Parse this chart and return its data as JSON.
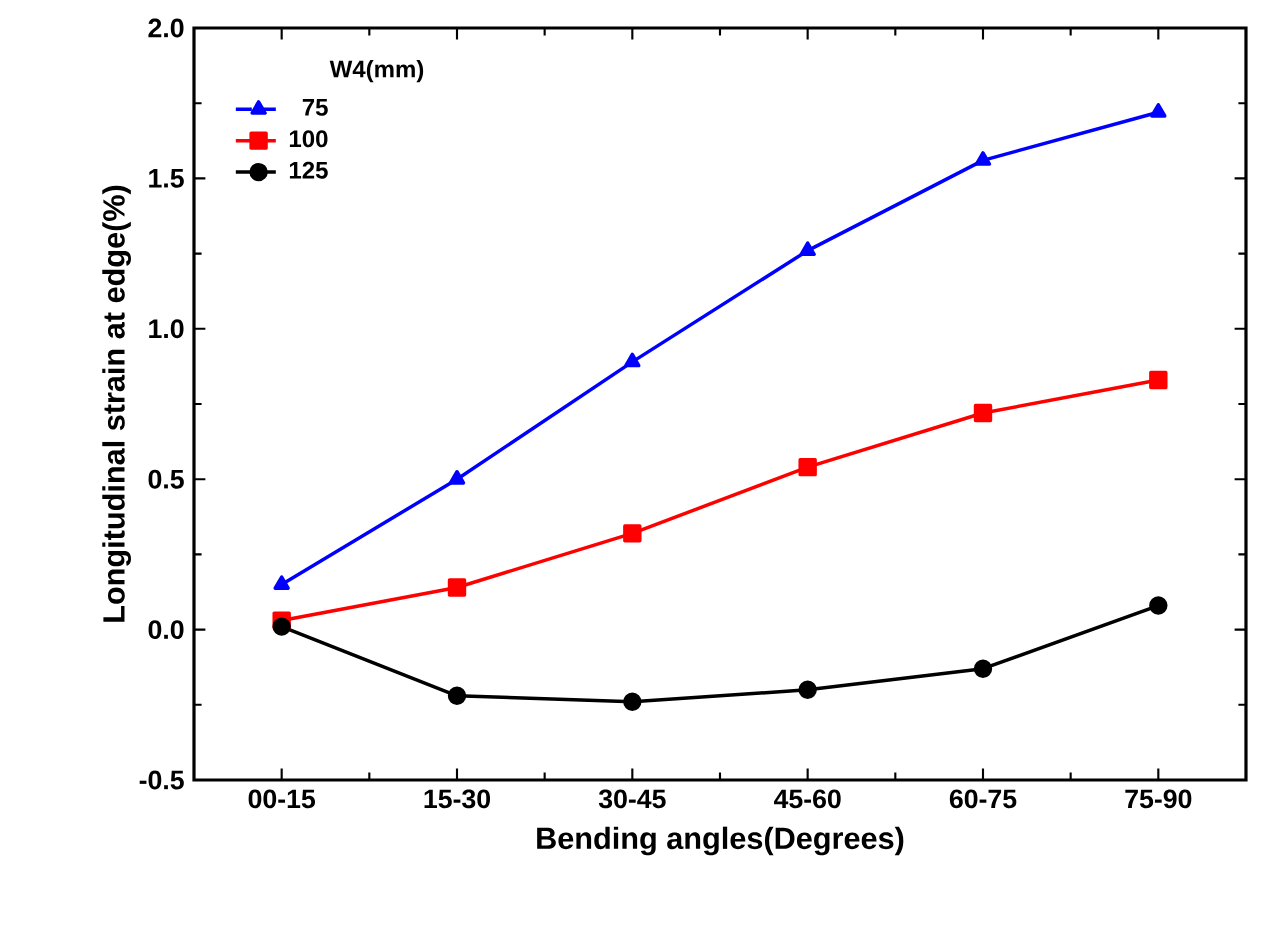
{
  "chart_data": {
    "type": "line",
    "xlabel": "Bending angles(Degrees)",
    "ylabel": "Longitudinal strain at edge(%)",
    "legend_title": "W4(mm)",
    "legend": "top left",
    "grid": false,
    "line_style": "solid",
    "categories": [
      "00-15",
      "15-30",
      "30-45",
      "45-60",
      "60-75",
      "75-90"
    ],
    "ylim": [
      -0.5,
      2.0
    ],
    "yticks": [
      {
        "value": -0.5,
        "label": "-0.5"
      },
      {
        "value": 0,
        "label": "0.0"
      },
      {
        "value": 0.5,
        "label": "0.5"
      },
      {
        "value": 1,
        "label": "1.0"
      },
      {
        "value": 1.5,
        "label": "1.5"
      },
      {
        "value": 2,
        "label": "2.0"
      }
    ],
    "series": [
      {
        "name": "75",
        "color": "#0000ff",
        "marker": "triangle",
        "values": [
          0.15,
          0.5,
          0.89,
          1.26,
          1.56,
          1.72
        ]
      },
      {
        "name": "100",
        "color": "#ff0000",
        "marker": "square",
        "values": [
          0.03,
          0.14,
          0.32,
          0.54,
          0.72,
          0.83
        ]
      },
      {
        "name": "125",
        "color": "#000000",
        "marker": "circle",
        "values": [
          0.01,
          -0.22,
          -0.24,
          -0.2,
          -0.13,
          0.08
        ]
      }
    ]
  }
}
